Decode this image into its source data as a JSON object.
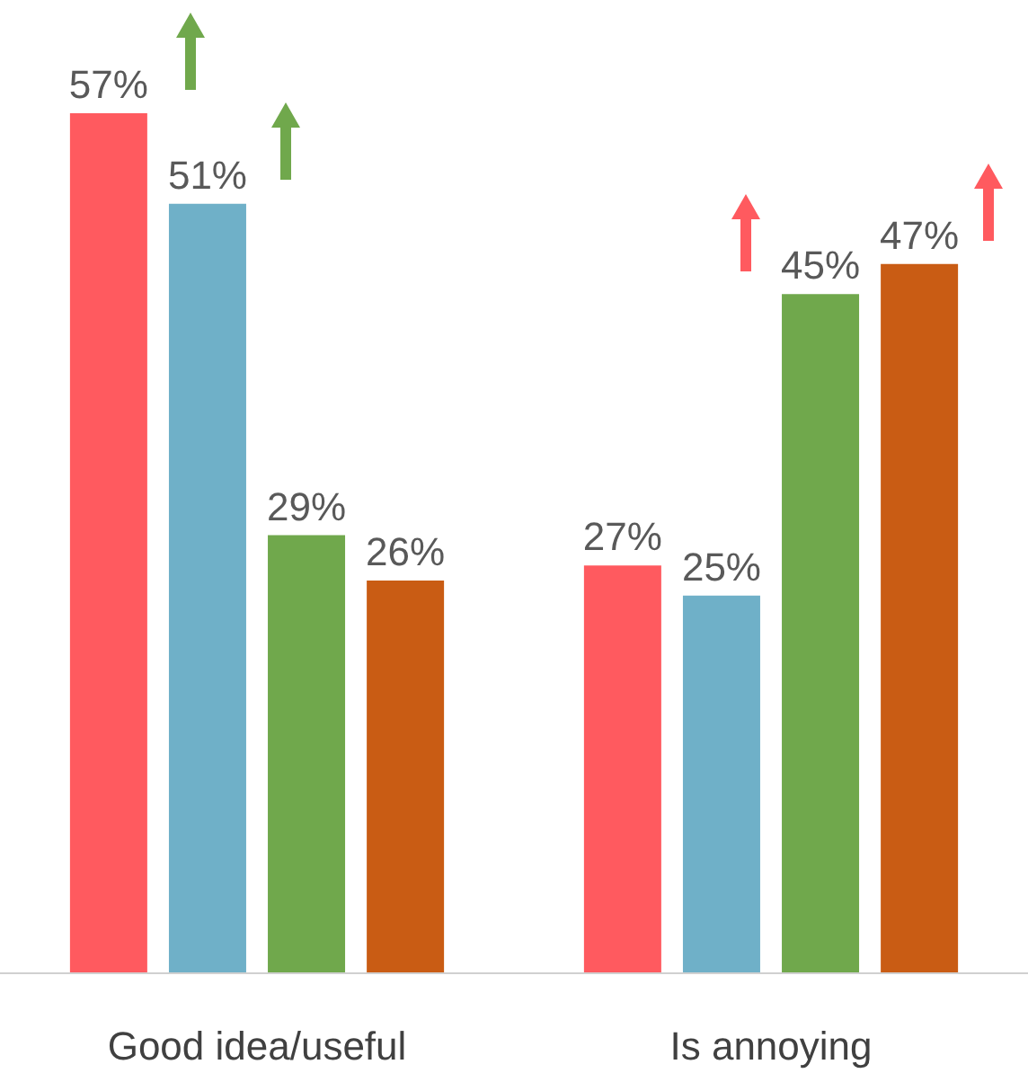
{
  "chart_data": {
    "type": "bar",
    "categories": [
      "Good idea/useful",
      "Is annoying"
    ],
    "series": [
      {
        "color": "#ff5a5f",
        "values": [
          57,
          27
        ],
        "value_labels": [
          "57%",
          "27%"
        ]
      },
      {
        "color": "#6fb0c8",
        "values": [
          51,
          25
        ],
        "value_labels": [
          "51%",
          "25%"
        ]
      },
      {
        "color": "#70a84c",
        "values": [
          29,
          45
        ],
        "value_labels": [
          "29%",
          "45%"
        ]
      },
      {
        "color": "#c95c14",
        "values": [
          26,
          47
        ],
        "value_labels": [
          "26%",
          "47%"
        ]
      }
    ]
  }
}
